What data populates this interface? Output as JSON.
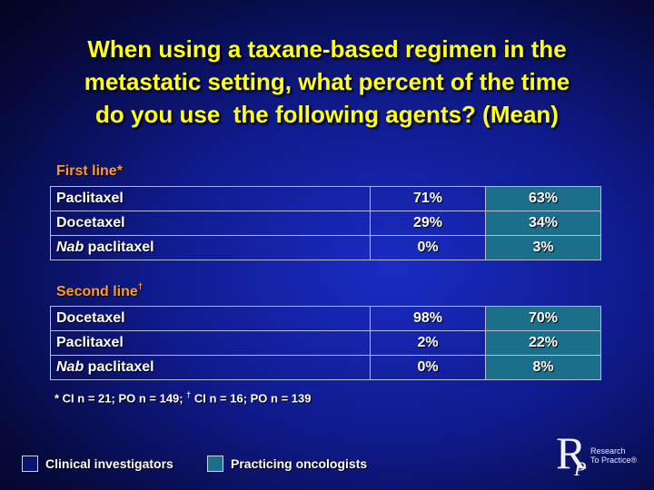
{
  "title_lines": [
    "When using a taxane-based regimen in the",
    "metastatic setting, what percent of the time",
    "do you use  the following agents? (Mean)"
  ],
  "first_line": {
    "label": "First line",
    "marker": "*",
    "rows": [
      {
        "agent_em": "",
        "agent": "Paclitaxel",
        "ci": "71%",
        "po": "63%"
      },
      {
        "agent_em": "",
        "agent": "Docetaxel",
        "ci": "29%",
        "po": "34%"
      },
      {
        "agent_em": "Nab",
        "agent": " paclitaxel",
        "ci": "0%",
        "po": "3%"
      }
    ]
  },
  "second_line": {
    "label": "Second line",
    "marker": "†",
    "rows": [
      {
        "agent_em": "",
        "agent": "Docetaxel",
        "ci": "98%",
        "po": "70%"
      },
      {
        "agent_em": "",
        "agent": "Paclitaxel",
        "ci": "2%",
        "po": "22%"
      },
      {
        "agent_em": "Nab",
        "agent": " paclitaxel",
        "ci": "0%",
        "po": "8%"
      }
    ]
  },
  "footnote": {
    "part1": "* CI n = 21; PO n = 149; ",
    "dagger": "†",
    "part2": " CI n = 16; PO n = 139"
  },
  "legend": {
    "ci_label": "Clinical investigators",
    "po_label": "Practicing oncologists"
  },
  "logo": {
    "r": "R",
    "p": "P",
    "line1": "Research",
    "line2": "To Practice®"
  }
}
